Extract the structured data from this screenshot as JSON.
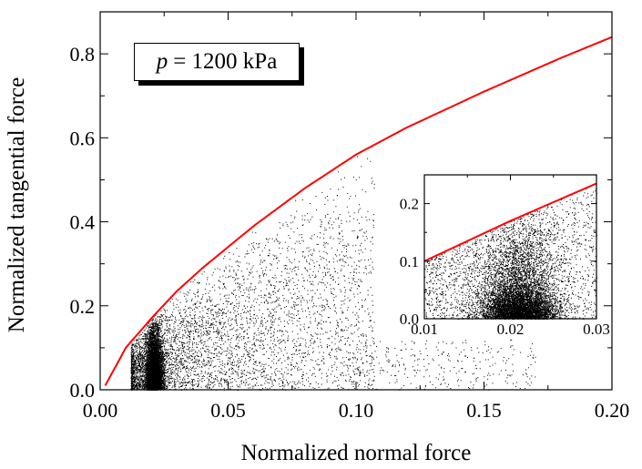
{
  "chart_data": {
    "type": "scatter",
    "xlabel": "Normalized normal force",
    "ylabel": "Normalized tangential force",
    "xlim": [
      0,
      0.2
    ],
    "ylim": [
      0,
      0.9
    ],
    "xticks": [
      "0.00",
      "0.05",
      "0.10",
      "0.15",
      "0.20"
    ],
    "yticks": [
      "0.0",
      "0.2",
      "0.4",
      "0.6",
      "0.8"
    ],
    "grid": false,
    "annotation": {
      "symbol": "p",
      "text": "= 1200 kPa"
    },
    "series": [
      {
        "kind": "scatter",
        "color": "#000000",
        "values": []
      },
      {
        "kind": "line",
        "color": "#ff0000",
        "x": [
          0.002,
          0.01,
          0.02,
          0.03,
          0.04,
          0.06,
          0.08,
          0.1,
          0.12,
          0.15,
          0.18,
          0.2
        ],
        "y": [
          0.01,
          0.1,
          0.17,
          0.235,
          0.29,
          0.39,
          0.48,
          0.56,
          0.625,
          0.71,
          0.79,
          0.84
        ]
      }
    ],
    "inset": {
      "xlim": [
        0.01,
        0.03
      ],
      "ylim": [
        0,
        0.25
      ],
      "xticks": [
        "0.01",
        "0.02",
        "0.03"
      ],
      "yticks": [
        "0.0",
        "0.1",
        "0.2"
      ]
    }
  }
}
